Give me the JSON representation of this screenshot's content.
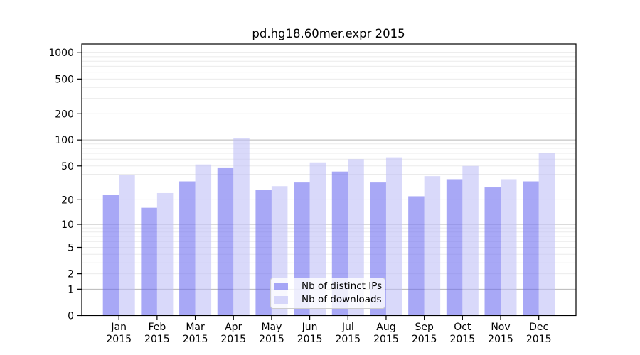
{
  "chart_data": {
    "type": "bar",
    "title": "pd.hg18.60mer.expr 2015",
    "year_label": "2015",
    "categories": [
      "Jan",
      "Feb",
      "Mar",
      "Apr",
      "May",
      "Jun",
      "Jul",
      "Aug",
      "Sep",
      "Oct",
      "Nov",
      "Dec"
    ],
    "series": [
      {
        "key": "distinct-ips",
        "name": "Nb of distinct IPs",
        "color": "rgba(110,110,240,0.60)",
        "values": [
          23,
          16,
          33,
          48,
          26,
          32,
          43,
          32,
          22,
          35,
          28,
          33
        ]
      },
      {
        "key": "downloads",
        "name": "Nb of downloads",
        "color": "rgba(190,190,247,0.58)",
        "values": [
          39,
          24,
          52,
          106,
          29,
          55,
          60,
          63,
          38,
          50,
          35,
          70
        ]
      }
    ],
    "yticks": [
      0,
      1,
      2,
      5,
      10,
      20,
      50,
      100,
      200,
      500,
      1000
    ],
    "scale": "log1p",
    "ylim": [
      0,
      1250
    ],
    "grid": {
      "major": [
        1,
        10,
        100,
        1000
      ],
      "major_color": "#b7b7b7",
      "minor_color": "#ebebeb"
    },
    "legend_position": "lower-center",
    "axis_color": "#000000",
    "background": "#ffffff"
  }
}
